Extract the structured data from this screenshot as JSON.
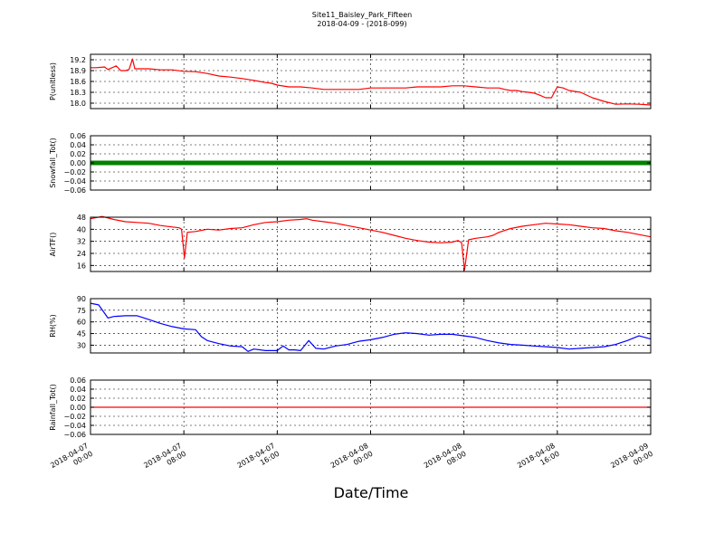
{
  "figure": {
    "title": "Site11_Baisley_Park_Fifteen",
    "subtitle": "2018-04-09 - (2018-099)",
    "xlabel": "Date/Time",
    "x_ticks": [
      "2018-04-07\n00:00",
      "2018-04-07\n08:00",
      "2018-04-07\n16:00",
      "2018-04-08\n00:00",
      "2018-04-08\n08:00",
      "2018-04-08\n16:00",
      "2018-04-09\n00:00"
    ]
  },
  "chart_data": [
    {
      "type": "line",
      "ylabel": "P(unitless)",
      "color": "#ff0000",
      "ylim": [
        17.85,
        19.35
      ],
      "yticks": [
        18.0,
        18.3,
        18.6,
        18.9,
        19.2
      ],
      "tick_labels": [
        "18.0",
        "18.3",
        "18.6",
        "18.9",
        "19.2"
      ],
      "grid": true,
      "series": [
        {
          "x": [
            0,
            0.5,
            1.2,
            1.5,
            2.2,
            2.6,
            3,
            3.3,
            3.6,
            3.8,
            4.2,
            5,
            6,
            7,
            8,
            9,
            10,
            11,
            12,
            13,
            14,
            14.5,
            15,
            15.5,
            16,
            17,
            18,
            19,
            20,
            21,
            22,
            23,
            24,
            25,
            26,
            27,
            28,
            29,
            30,
            31,
            32,
            33,
            34,
            35,
            35.5,
            36,
            36.5,
            37,
            37.5,
            38,
            38.5,
            39,
            39.5,
            40,
            40.5,
            41,
            42,
            43,
            44,
            45,
            46,
            47,
            48
          ],
          "y": [
            18.98,
            18.98,
            19.0,
            18.93,
            19.03,
            18.9,
            18.9,
            18.93,
            19.22,
            18.95,
            18.95,
            18.95,
            18.92,
            18.92,
            18.88,
            18.87,
            18.82,
            18.75,
            18.72,
            18.68,
            18.63,
            18.6,
            18.57,
            18.55,
            18.5,
            18.45,
            18.45,
            18.42,
            18.38,
            18.38,
            18.38,
            18.38,
            18.42,
            18.42,
            18.42,
            18.42,
            18.45,
            18.45,
            18.45,
            18.48,
            18.48,
            18.45,
            18.42,
            18.42,
            18.38,
            18.35,
            18.35,
            18.32,
            18.3,
            18.28,
            18.22,
            18.15,
            18.15,
            18.45,
            18.42,
            18.35,
            18.3,
            18.15,
            18.05,
            17.97,
            17.98,
            17.97,
            17.95
          ]
        }
      ]
    },
    {
      "type": "scatter",
      "ylabel": "Snowfall_Tot()",
      "color": "#008000",
      "ylim": [
        -0.06,
        0.06
      ],
      "yticks": [
        -0.06,
        -0.04,
        -0.02,
        0.0,
        0.02,
        0.04,
        0.06
      ],
      "tick_labels": [
        "−0.06",
        "−0.04",
        "−0.02",
        "0.00",
        "0.02",
        "0.04",
        "0.06"
      ],
      "grid": true,
      "series": [
        {
          "x": [
            0,
            48
          ],
          "y": [
            0.0,
            0.0
          ]
        }
      ]
    },
    {
      "type": "line",
      "ylabel": "AirTF()",
      "color": "#ff0000",
      "ylim": [
        12,
        48
      ],
      "yticks": [
        16,
        24,
        32,
        40,
        48
      ],
      "tick_labels": [
        "16",
        "24",
        "32",
        "40",
        "48"
      ],
      "grid": true,
      "series": [
        {
          "x": [
            0,
            1,
            2,
            3,
            4,
            5,
            6,
            7,
            7.6,
            7.8,
            8.05,
            8.3,
            9,
            10,
            11,
            12,
            13,
            14,
            15,
            16,
            17,
            18,
            18.5,
            19,
            20,
            21,
            22,
            23,
            24,
            25,
            26,
            27,
            28,
            29,
            30,
            31,
            31.5,
            31.8,
            32.05,
            32.4,
            33,
            34,
            34.5,
            35,
            36,
            37,
            38,
            39,
            40,
            41,
            42,
            43,
            44,
            45,
            46,
            47,
            48
          ],
          "y": [
            47,
            48.5,
            46.5,
            45,
            44.5,
            44,
            42.5,
            41.5,
            41,
            40,
            21,
            38,
            38.5,
            40,
            39.5,
            40.5,
            41,
            43,
            44.5,
            45,
            46,
            46.5,
            47,
            46,
            45,
            44,
            42.5,
            41,
            39.5,
            38,
            36,
            34,
            32.5,
            31.5,
            31,
            31.5,
            32.5,
            31,
            13,
            33,
            34,
            35,
            36,
            38,
            40.5,
            42,
            43,
            44,
            43.5,
            43,
            42,
            41,
            40.5,
            39,
            38,
            36.5,
            35
          ]
        }
      ]
    },
    {
      "type": "line",
      "ylabel": "RH(%)",
      "color": "#0000ff",
      "ylim": [
        20,
        90
      ],
      "yticks": [
        30,
        45,
        60,
        75,
        90
      ],
      "tick_labels": [
        "30",
        "45",
        "60",
        "75",
        "90"
      ],
      "grid": true,
      "series": [
        {
          "x": [
            0,
            0.7,
            1.5,
            2,
            3,
            4,
            5,
            6,
            7,
            8,
            9,
            9.5,
            10,
            11,
            12,
            13,
            13.5,
            14,
            15,
            16,
            16.5,
            17,
            17.5,
            18,
            18.7,
            19.3,
            20,
            21,
            22,
            23,
            24,
            25,
            26,
            27,
            28,
            29,
            30,
            31,
            32,
            33,
            34,
            35,
            36,
            37,
            38,
            39,
            40,
            41,
            42,
            43,
            44,
            45,
            46,
            47,
            48
          ],
          "y": [
            84,
            82,
            65,
            67,
            68,
            68,
            63,
            58,
            54,
            51,
            50,
            41,
            36,
            32,
            29,
            28,
            22,
            25,
            23,
            23,
            29,
            24,
            24,
            23,
            36,
            26,
            25,
            29,
            31,
            35,
            37,
            40,
            44,
            46,
            45,
            43,
            44,
            44,
            42,
            40,
            36,
            33,
            31,
            30,
            29,
            28,
            27,
            25,
            26,
            27,
            28,
            31,
            36,
            42,
            38
          ]
        }
      ]
    },
    {
      "type": "line",
      "ylabel": "Rainfall_Tot()",
      "color": "#ff0000",
      "ylim": [
        -0.06,
        0.06
      ],
      "yticks": [
        -0.06,
        -0.04,
        -0.02,
        0.0,
        0.02,
        0.04,
        0.06
      ],
      "tick_labels": [
        "−0.06",
        "−0.04",
        "−0.02",
        "0.00",
        "0.02",
        "0.04",
        "0.06"
      ],
      "grid": true,
      "series": [
        {
          "x": [
            0,
            48
          ],
          "y": [
            0.0,
            0.0
          ]
        }
      ]
    }
  ]
}
